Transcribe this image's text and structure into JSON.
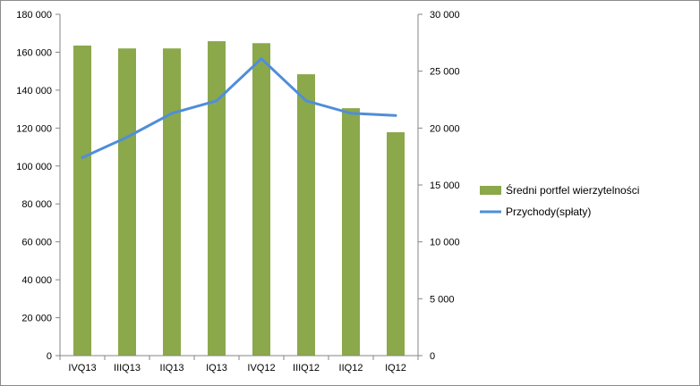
{
  "chart_data": {
    "type": "bar",
    "categories": [
      "IVQ13",
      "IIIQ13",
      "IIQ13",
      "IQ13",
      "IVQ12",
      "IIIQ12",
      "IIQ12",
      "IQ12"
    ],
    "series": [
      {
        "name": "Średni portfel wierzytelności",
        "type": "bar",
        "axis": "left",
        "color": "#8BA84B",
        "values": [
          163500,
          162000,
          162000,
          165800,
          164800,
          148400,
          130500,
          117800
        ]
      },
      {
        "name": "Przychody(spłaty)",
        "type": "line",
        "axis": "right",
        "color": "#4F8ED9",
        "values": [
          17400,
          19200,
          21300,
          22400,
          26100,
          22400,
          21300,
          21100
        ]
      }
    ],
    "left_axis": {
      "ylim": [
        0,
        180000
      ],
      "ticks": [
        0,
        20000,
        40000,
        60000,
        80000,
        100000,
        120000,
        140000,
        160000,
        180000
      ],
      "tick_labels": [
        "0",
        "20 000",
        "40 000",
        "60 000",
        "80 000",
        "100 000",
        "120 000",
        "140 000",
        "160 000",
        "180 000"
      ]
    },
    "right_axis": {
      "ylim": [
        0,
        30000
      ],
      "ticks": [
        0,
        5000,
        10000,
        15000,
        20000,
        25000,
        30000
      ],
      "tick_labels": [
        "0",
        "5 000",
        "10 000",
        "15 000",
        "20 000",
        "25 000",
        "30 000"
      ]
    },
    "grid": false,
    "legend_position": "right",
    "colors": {
      "axis": "#868686",
      "frame": "#8c8c8c"
    }
  }
}
